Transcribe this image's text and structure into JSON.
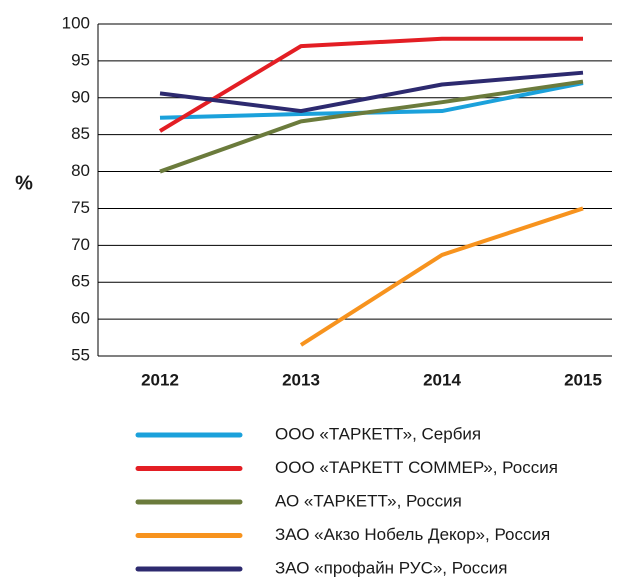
{
  "chart_data": {
    "type": "line",
    "y_label": "%",
    "categories": [
      "2012",
      "2013",
      "2014",
      "2015"
    ],
    "series": [
      {
        "name": "ООО «ТАРКЕТТ», Сербия",
        "color": "#1ba1db",
        "values": [
          87.3,
          87.8,
          88.2,
          92.0
        ]
      },
      {
        "name": "ООО «ТАРКЕТТ СОММЕР», Россия",
        "color": "#e31e24",
        "values": [
          85.5,
          97.0,
          98.0,
          98.0
        ]
      },
      {
        "name": "АО «ТАРКЕТТ», Россия",
        "color": "#6b7b3c",
        "values": [
          80.0,
          86.8,
          89.4,
          92.2
        ]
      },
      {
        "name": "ЗАО «Акзо Нобель Декор», Россия",
        "color": "#f7931e",
        "values": [
          null,
          56.5,
          68.7,
          75.0
        ]
      },
      {
        "name": "ЗАО «профайн РУС», Россия",
        "color": "#2d2a6f",
        "values": [
          90.6,
          88.2,
          91.8,
          93.4
        ]
      }
    ],
    "ylim": [
      55,
      100
    ],
    "yticks": [
      55,
      60,
      65,
      70,
      75,
      80,
      85,
      90,
      95,
      100
    ],
    "grid": true,
    "legend": "bottom"
  }
}
